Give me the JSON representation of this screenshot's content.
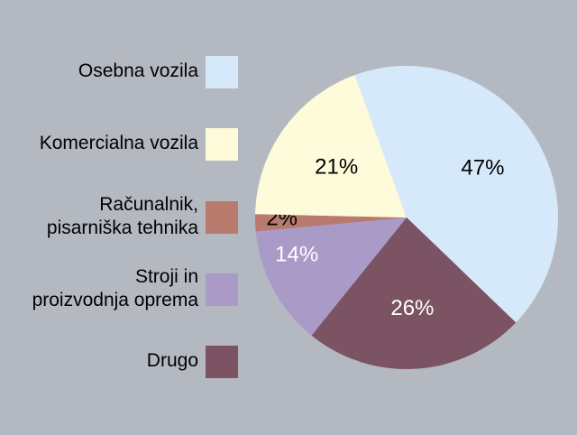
{
  "chart_data": {
    "type": "pie",
    "legend_position": "left",
    "slices": [
      {
        "name": "Osebna vozila",
        "value": 47,
        "label": "47%",
        "color": "#d5e9fb",
        "label_color": "#000000"
      },
      {
        "name": "Drugo",
        "value": 26,
        "label": "26%",
        "color": "#7b5362",
        "label_color": "#ffffff"
      },
      {
        "name": "Stroji in proizvodnja oprema",
        "value": 14,
        "label": "14%",
        "color": "#a99ac7",
        "label_color": "#ffffff"
      },
      {
        "name": "Računalnik, pisarniška tehnika",
        "value": 2,
        "label": "2%",
        "color": "#b97a6e",
        "label_color": "#000000"
      },
      {
        "name": "Komercialna vozila",
        "value": 21,
        "label": "21%",
        "color": "#fefbda",
        "label_color": "#000000"
      }
    ]
  },
  "legend": [
    {
      "lines": [
        "Osebna vozila"
      ],
      "color": "#d5e9fb"
    },
    {
      "lines": [
        "Komercialna vozila"
      ],
      "color": "#fefbda"
    },
    {
      "lines": [
        "Računalnik,",
        "pisarniška tehnika"
      ],
      "color": "#b97a6e"
    },
    {
      "lines": [
        "Stroji in",
        "proizvodnja oprema"
      ],
      "color": "#a99ac7"
    },
    {
      "lines": [
        "Drugo"
      ],
      "color": "#7b5362"
    }
  ]
}
